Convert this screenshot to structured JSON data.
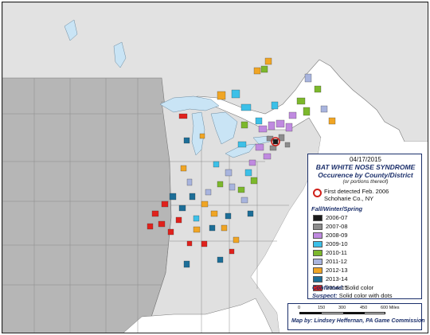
{
  "legend": {
    "date": "04/17/2015",
    "title_line1": "BAT WHITE NOSE SYNDROME",
    "title_line2": "Occurence by County/District",
    "title_line3": "(or portions thereof)",
    "first_detected_line1": "First detected Feb. 2006",
    "first_detected_line2": "Schoharie Co., NY",
    "season_heading": "Fall/Winter/Spring",
    "seasons": [
      {
        "label": "2006-07",
        "color": "#1a1a1a"
      },
      {
        "label": "2007-08",
        "color": "#8c8c8c"
      },
      {
        "label": "2008-09",
        "color": "#c08ae0"
      },
      {
        "label": "2009-10",
        "color": "#3cc0e8"
      },
      {
        "label": "2010-11",
        "color": "#7cb82c"
      },
      {
        "label": "2011-12",
        "color": "#a8b4de"
      },
      {
        "label": "2012-13",
        "color": "#f0a524"
      },
      {
        "label": "2013-14",
        "color": "#1c6e98"
      },
      {
        "label": "2014-15",
        "color": "#e0211c"
      }
    ],
    "confirmed_label": "Confirmed:",
    "confirmed_value": "Solid color",
    "suspect_label": "Suspect:",
    "suspect_value": "Solid color with dots"
  },
  "scale": {
    "ticks": [
      "0",
      "150",
      "300",
      "450",
      "600 Miles"
    ],
    "credit": "Map by: Lindsey Heffernan, PA Game Commission"
  },
  "map_colors": {
    "land": "#e0e0e0",
    "west_land": "#b4b4b4",
    "water": "#c9e4f5",
    "border": "#6a6a6a"
  }
}
